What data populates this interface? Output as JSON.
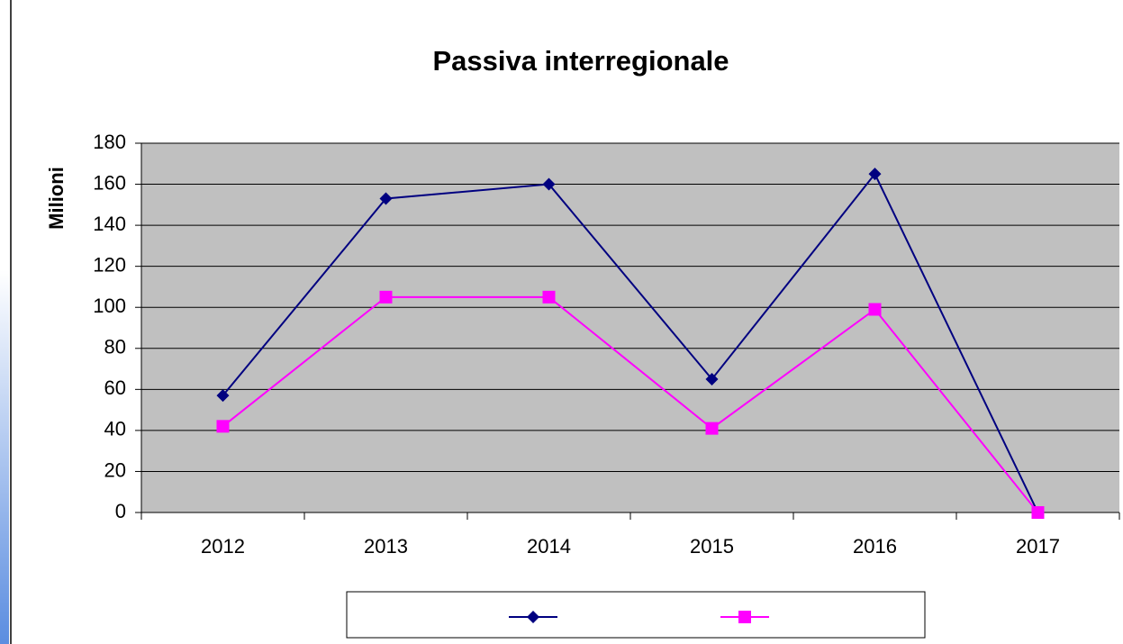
{
  "chart_data": {
    "type": "line",
    "title": "Passiva interregionale",
    "y_label": "Milioni",
    "categories": [
      "2012",
      "2013",
      "2014",
      "2015",
      "2016",
      "2017"
    ],
    "series": [
      {
        "color": "#000080",
        "marker": "diamond",
        "values": [
          57,
          153,
          160,
          65,
          165,
          0
        ]
      },
      {
        "color": "#ff00ff",
        "marker": "square",
        "values": [
          42,
          105,
          105,
          41,
          99,
          0
        ]
      }
    ],
    "ylim": [
      0,
      180
    ],
    "yticks": [
      0,
      20,
      40,
      60,
      80,
      100,
      120,
      140,
      160,
      180
    ],
    "grid": true,
    "legend": "bottom"
  }
}
